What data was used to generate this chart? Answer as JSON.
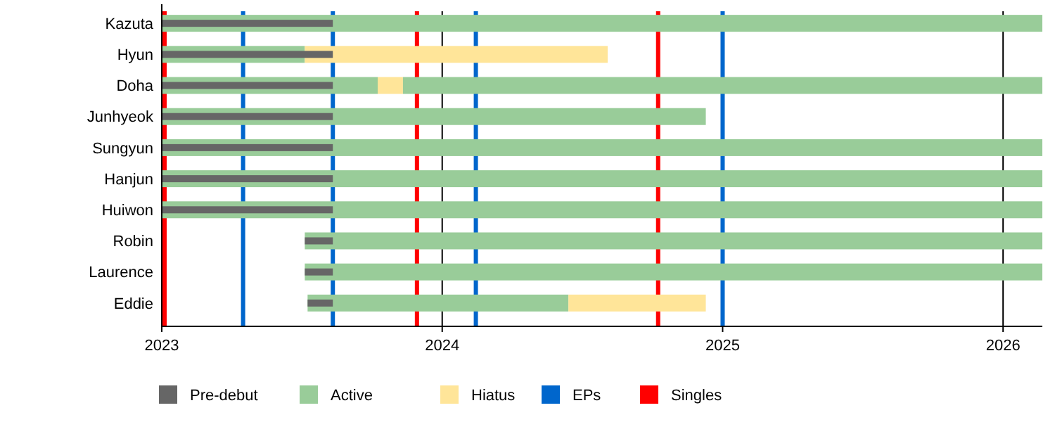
{
  "chart_data": {
    "type": "bar",
    "orientation": "horizontal",
    "categories": [
      "Kazuta",
      "Hyun",
      "Doha",
      "Junhyeok",
      "Sungyun",
      "Hanjun",
      "Huiwon",
      "Robin",
      "Laurence",
      "Eddie"
    ],
    "series": [
      {
        "name": "Active",
        "color": "#99cc99",
        "base": [
          2023,
          2023,
          2023,
          2023,
          2023,
          2023,
          2023,
          2023.51,
          2023.51,
          2023.52
        ],
        "values": [
          3.14,
          0.51,
          0.77,
          1.94,
          3.14,
          3.14,
          3.14,
          2.63,
          2.63,
          0.93
        ]
      },
      {
        "name": "Hiatus",
        "color": "#ffe599",
        "base": [
          null,
          2023.51,
          2023.77,
          null,
          null,
          null,
          null,
          null,
          null,
          2024.45
        ],
        "values": [
          null,
          1.08,
          0.09,
          null,
          null,
          null,
          null,
          null,
          null,
          0.49
        ]
      },
      {
        "color": "#99cc99",
        "base": [
          null,
          null,
          2023.86,
          null,
          null,
          null,
          null,
          null,
          null,
          null
        ],
        "values": [
          null,
          null,
          2.28,
          null,
          null,
          null,
          null,
          null,
          null,
          null
        ]
      },
      {
        "name": "Pre-debut",
        "color": "#666666",
        "base": [
          2023,
          2023,
          2023,
          2023,
          2023,
          2023,
          2023,
          2023.51,
          2023.51,
          2023.52
        ],
        "values": [
          0.61,
          0.61,
          0.61,
          0.61,
          0.61,
          0.61,
          0.61,
          0.1,
          0.1,
          0.09
        ]
      }
    ],
    "xlim": [
      2023,
      2026.14
    ],
    "xticks": [
      2023,
      2024,
      2025,
      2026
    ],
    "grid": "x",
    "legend": "bottom",
    "ref_lines": [
      {
        "axis": "x",
        "value": 2023.01,
        "label": "Singles",
        "color": "#ff0000"
      },
      {
        "axis": "x",
        "value": 2023.29,
        "label": "EPs",
        "color": "#0066cc"
      },
      {
        "axis": "x",
        "value": 2023.61,
        "color": "#0066cc"
      },
      {
        "axis": "x",
        "value": 2023.91,
        "color": "#ff0000"
      },
      {
        "axis": "x",
        "value": 2024.12,
        "color": "#0066cc"
      },
      {
        "axis": "x",
        "value": 2024.77,
        "color": "#ff0000"
      },
      {
        "axis": "x",
        "value": 2025.0,
        "color": "#0066cc"
      }
    ]
  }
}
